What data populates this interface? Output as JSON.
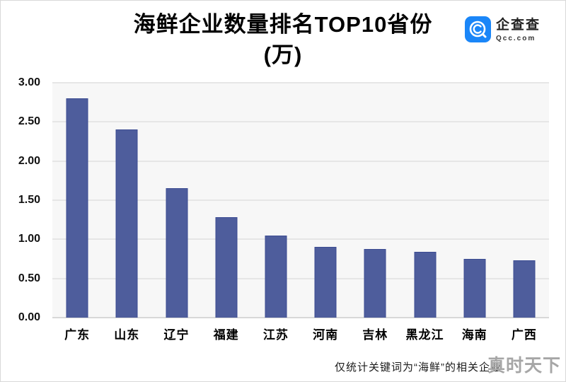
{
  "header": {
    "title_line1": "海鲜企业数量排名TOP10省份",
    "title_line2": "(万)"
  },
  "logo": {
    "name": "企查查",
    "domain": "Qcc.com",
    "brand_color": "#1a86f8"
  },
  "footer": {
    "note": "仅统计关键词为“海鲜”的相关企业",
    "watermark": "真时天下"
  },
  "chart_data": {
    "type": "bar",
    "title": "海鲜企业数量排名TOP10省份(万)",
    "unit": "万",
    "categories": [
      "广东",
      "山东",
      "辽宁",
      "福建",
      "江苏",
      "河南",
      "吉林",
      "黑龙江",
      "海南",
      "广西"
    ],
    "values": [
      2.8,
      2.4,
      1.65,
      1.28,
      1.05,
      0.9,
      0.88,
      0.84,
      0.75,
      0.73
    ],
    "xlabel": "",
    "ylabel": "",
    "ylim": [
      0,
      3.0
    ],
    "y_ticks": [
      "3.00",
      "2.50",
      "2.00",
      "1.50",
      "1.00",
      "0.50",
      "0.00"
    ],
    "grid": true,
    "legend_position": "none",
    "bar_color": "#4e5d9c",
    "bar_border_color": "#3c4c92",
    "plot_bg": "#f7f7f7",
    "gridline_color": "#e6e6e6"
  }
}
